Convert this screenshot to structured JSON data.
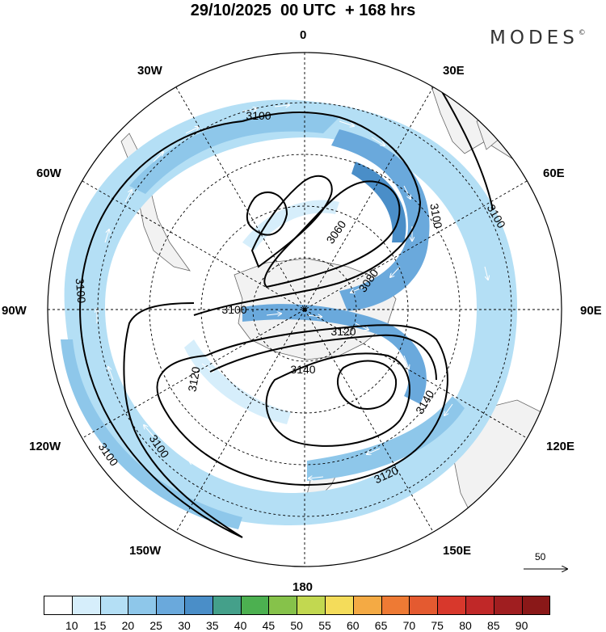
{
  "header": {
    "title": "29/10/2025  00 UTC  + 168 hrs",
    "brand": "MODES",
    "brand_mark": "©"
  },
  "map": {
    "projection": "south-polar-stereographic",
    "longitude_labels": {
      "top": "0",
      "top_right": "30E",
      "right_upper": "60E",
      "right": "90E",
      "right_lower": "120E",
      "bottom_right": "150E",
      "bottom": "180",
      "bottom_left": "150W",
      "left_lower": "120W",
      "left": "90W",
      "left_upper": "60W",
      "top_left": "30W"
    },
    "contour_labels": [
      "3060",
      "3080",
      "3100",
      "3100",
      "3100",
      "3100",
      "3100",
      "3100",
      "3100",
      "3120",
      "3120",
      "3120",
      "3140",
      "3140"
    ],
    "reference_vector": "50"
  },
  "colorbar": {
    "labels": [
      "10",
      "15",
      "20",
      "25",
      "30",
      "35",
      "40",
      "45",
      "50",
      "55",
      "60",
      "65",
      "70",
      "75",
      "80",
      "85",
      "90"
    ],
    "colors": [
      "#ffffff",
      "#d6eefb",
      "#b4dff5",
      "#8ec7ea",
      "#6aa9dc",
      "#4a8ec8",
      "#44a08a",
      "#4cb050",
      "#86c24a",
      "#c2d850",
      "#f4dc5a",
      "#f4aa44",
      "#ee7a34",
      "#e45a30",
      "#d8382c",
      "#c02828",
      "#a01e20",
      "#8a1818"
    ]
  }
}
